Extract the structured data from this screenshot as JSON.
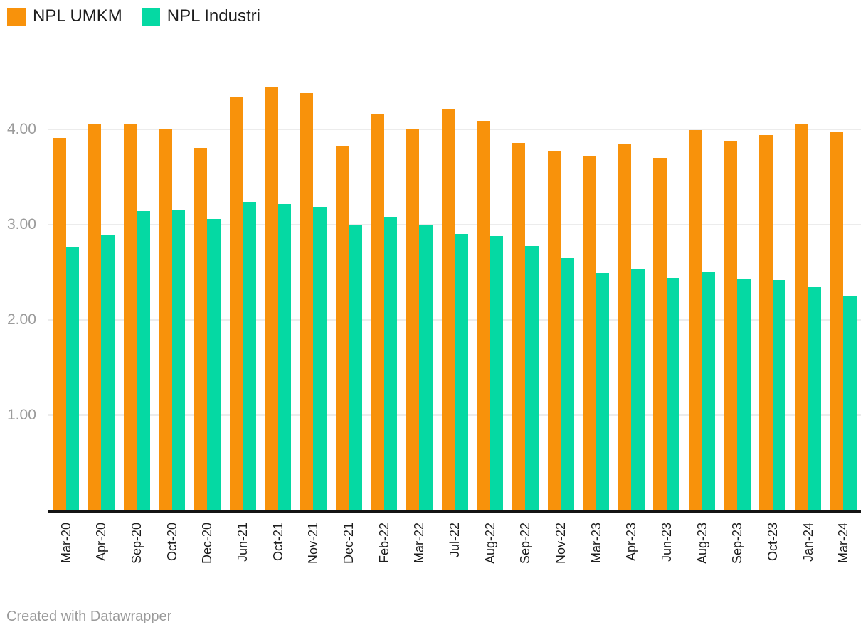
{
  "legend": {
    "items": [
      {
        "label": "NPL UMKM",
        "color": "#f8920b"
      },
      {
        "label": "NPL Industri",
        "color": "#05d9a3"
      }
    ]
  },
  "footer": {
    "text": "Created with Datawrapper"
  },
  "chart_data": {
    "type": "bar",
    "title": "",
    "xlabel": "",
    "ylabel": "",
    "grid": "horizontal",
    "legend_position": "top-left",
    "ylim": [
      0,
      4.6
    ],
    "yticks": [
      1,
      2,
      3,
      4
    ],
    "ytick_labels": [
      "1.00",
      "2.00",
      "3.00",
      "4.00"
    ],
    "categories": [
      "Mar-20",
      "Apr-20",
      "Sep-20",
      "Oct-20",
      "Dec-20",
      "Jun-21",
      "Oct-21",
      "Nov-21",
      "Dec-21",
      "Feb-22",
      "Mar-22",
      "Jul-22",
      "Aug-22",
      "Sep-22",
      "Nov-22",
      "Mar-23",
      "Apr-23",
      "Jun-23",
      "Aug-23",
      "Sep-23",
      "Oct-23",
      "Jan-24",
      "Mar-24"
    ],
    "series": [
      {
        "name": "NPL UMKM",
        "color": "#f8920b",
        "values": [
          3.91,
          4.05,
          4.05,
          4.0,
          3.81,
          4.34,
          4.44,
          4.38,
          3.83,
          4.16,
          4.0,
          4.22,
          4.09,
          3.86,
          3.77,
          3.72,
          3.84,
          3.7,
          3.99,
          3.88,
          3.94,
          4.05,
          3.98
        ]
      },
      {
        "name": "NPL Industri",
        "color": "#05d9a3",
        "values": [
          2.77,
          2.89,
          3.14,
          3.15,
          3.06,
          3.24,
          3.22,
          3.19,
          3.0,
          3.08,
          2.99,
          2.9,
          2.88,
          2.78,
          2.65,
          2.49,
          2.53,
          2.44,
          2.5,
          2.43,
          2.42,
          2.35,
          2.25
        ]
      }
    ]
  }
}
